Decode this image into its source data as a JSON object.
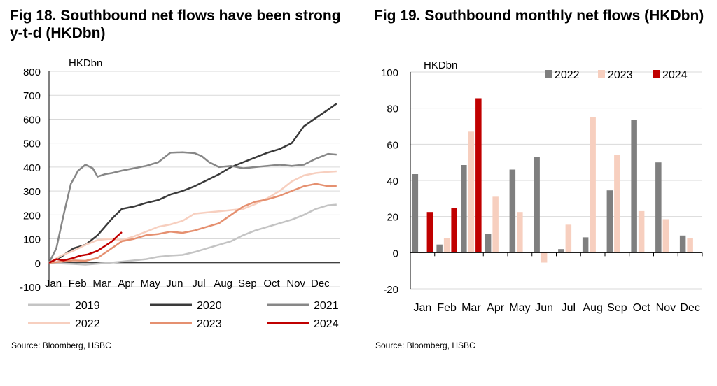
{
  "chart_data": [
    {
      "type": "line",
      "title": "Fig 18. Southbound net flows have been strong y-t-d (HKDbn)",
      "unit_label": "HKDbn",
      "x_categories": [
        "Jan",
        "Feb",
        "Mar",
        "Apr",
        "May",
        "Jun",
        "Jul",
        "Aug",
        "Sep",
        "Oct",
        "Nov",
        "Dec"
      ],
      "y_ticks": [
        800,
        700,
        600,
        500,
        400,
        300,
        200,
        100,
        0,
        -100
      ],
      "ylim": [
        -100,
        800
      ],
      "xlim": [
        0,
        12
      ],
      "grid": "horizontal",
      "legend_position": "bottom",
      "source": "Source: Bloomberg, HSBC",
      "series": [
        {
          "name": "2019",
          "color": "#c4c4c4",
          "points": [
            [
              0,
              0
            ],
            [
              0.5,
              -3
            ],
            [
              1,
              -5
            ],
            [
              1.5,
              -8
            ],
            [
              2,
              -4
            ],
            [
              2.5,
              0
            ],
            [
              3,
              5
            ],
            [
              3.5,
              10
            ],
            [
              4,
              15
            ],
            [
              4.5,
              25
            ],
            [
              5,
              30
            ],
            [
              5.5,
              33
            ],
            [
              6,
              45
            ],
            [
              6.5,
              60
            ],
            [
              7,
              75
            ],
            [
              7.5,
              90
            ],
            [
              8,
              115
            ],
            [
              8.5,
              135
            ],
            [
              9,
              150
            ],
            [
              9.5,
              165
            ],
            [
              10,
              180
            ],
            [
              10.5,
              200
            ],
            [
              11,
              225
            ],
            [
              11.5,
              240
            ],
            [
              11.85,
              243
            ]
          ]
        },
        {
          "name": "2020",
          "color": "#3a3a3a",
          "points": [
            [
              0,
              0
            ],
            [
              0.5,
              25
            ],
            [
              1,
              60
            ],
            [
              1.5,
              75
            ],
            [
              2,
              115
            ],
            [
              2.3,
              150
            ],
            [
              2.6,
              185
            ],
            [
              3,
              225
            ],
            [
              3.5,
              235
            ],
            [
              4,
              250
            ],
            [
              4.5,
              262
            ],
            [
              5,
              285
            ],
            [
              5.5,
              300
            ],
            [
              6,
              320
            ],
            [
              6.5,
              345
            ],
            [
              7,
              370
            ],
            [
              7.5,
              400
            ],
            [
              8,
              420
            ],
            [
              8.5,
              440
            ],
            [
              9,
              460
            ],
            [
              9.5,
              475
            ],
            [
              10,
              500
            ],
            [
              10.5,
              570
            ],
            [
              11,
              605
            ],
            [
              11.5,
              640
            ],
            [
              11.85,
              665
            ]
          ]
        },
        {
          "name": "2021",
          "color": "#878787",
          "points": [
            [
              0,
              0
            ],
            [
              0.3,
              60
            ],
            [
              0.6,
              200
            ],
            [
              0.9,
              330
            ],
            [
              1.2,
              385
            ],
            [
              1.5,
              410
            ],
            [
              1.8,
              395
            ],
            [
              2,
              360
            ],
            [
              2.3,
              370
            ],
            [
              2.6,
              375
            ],
            [
              3,
              385
            ],
            [
              3.5,
              395
            ],
            [
              4,
              405
            ],
            [
              4.5,
              420
            ],
            [
              5,
              460
            ],
            [
              5.5,
              462
            ],
            [
              6,
              458
            ],
            [
              6.3,
              445
            ],
            [
              6.6,
              420
            ],
            [
              7,
              400
            ],
            [
              7.5,
              405
            ],
            [
              8,
              395
            ],
            [
              8.5,
              400
            ],
            [
              9,
              405
            ],
            [
              9.5,
              410
            ],
            [
              10,
              405
            ],
            [
              10.5,
              410
            ],
            [
              11,
              435
            ],
            [
              11.5,
              455
            ],
            [
              11.85,
              452
            ]
          ]
        },
        {
          "name": "2022",
          "color": "#f7cfbf",
          "points": [
            [
              0,
              0
            ],
            [
              0.5,
              30
            ],
            [
              1,
              50
            ],
            [
              1.5,
              75
            ],
            [
              2,
              95
            ],
            [
              2.5,
              100
            ],
            [
              3,
              95
            ],
            [
              3.5,
              110
            ],
            [
              4,
              130
            ],
            [
              4.5,
              150
            ],
            [
              5,
              160
            ],
            [
              5.5,
              175
            ],
            [
              6,
              205
            ],
            [
              6.5,
              210
            ],
            [
              7,
              215
            ],
            [
              7.5,
              220
            ],
            [
              8,
              225
            ],
            [
              8.5,
              245
            ],
            [
              9,
              270
            ],
            [
              9.5,
              300
            ],
            [
              10,
              340
            ],
            [
              10.5,
              365
            ],
            [
              11,
              375
            ],
            [
              11.5,
              380
            ],
            [
              11.85,
              382
            ]
          ]
        },
        {
          "name": "2023",
          "color": "#e59070",
          "points": [
            [
              0,
              0
            ],
            [
              0.5,
              5
            ],
            [
              1,
              10
            ],
            [
              1.5,
              8
            ],
            [
              2,
              20
            ],
            [
              2.5,
              55
            ],
            [
              3,
              90
            ],
            [
              3.5,
              100
            ],
            [
              4,
              115
            ],
            [
              4.5,
              120
            ],
            [
              5,
              130
            ],
            [
              5.5,
              125
            ],
            [
              6,
              135
            ],
            [
              6.5,
              150
            ],
            [
              7,
              165
            ],
            [
              7.5,
              200
            ],
            [
              8,
              235
            ],
            [
              8.5,
              255
            ],
            [
              9,
              265
            ],
            [
              9.5,
              280
            ],
            [
              10,
              300
            ],
            [
              10.5,
              320
            ],
            [
              11,
              330
            ],
            [
              11.5,
              320
            ],
            [
              11.85,
              320
            ]
          ]
        },
        {
          "name": "2024",
          "color": "#c00000",
          "points": [
            [
              0,
              0
            ],
            [
              0.3,
              15
            ],
            [
              0.6,
              10
            ],
            [
              1,
              20
            ],
            [
              1.3,
              30
            ],
            [
              1.6,
              35
            ],
            [
              2,
              50
            ],
            [
              2.3,
              70
            ],
            [
              2.6,
              90
            ],
            [
              2.8,
              110
            ],
            [
              3,
              128
            ]
          ]
        }
      ]
    },
    {
      "type": "bar",
      "title": "Fig 19. Southbound monthly net flows (HKDbn)",
      "unit_label": "HKDbn",
      "categories": [
        "Jan",
        "Feb",
        "Mar",
        "Apr",
        "May",
        "Jun",
        "Jul",
        "Aug",
        "Sep",
        "Oct",
        "Nov",
        "Dec"
      ],
      "y_ticks": [
        100,
        80,
        60,
        40,
        20,
        0,
        -20
      ],
      "ylim": [
        -20,
        100
      ],
      "grid": "horizontal",
      "legend_position": "top-right",
      "source": "Source: Bloomberg, HSBC",
      "series": [
        {
          "name": "2022",
          "color": "#7f7f7f",
          "values": [
            43.5,
            4.5,
            48.5,
            10.5,
            46,
            53,
            2,
            8.5,
            34.5,
            73.5,
            50,
            9.5
          ]
        },
        {
          "name": "2023",
          "color": "#f7cfbf",
          "values": [
            0,
            8,
            67,
            31,
            22.5,
            -5.5,
            15.5,
            75,
            54,
            23,
            18.5,
            8
          ]
        },
        {
          "name": "2024",
          "color": "#c00000",
          "values": [
            22.5,
            24.5,
            85.5,
            null,
            null,
            null,
            null,
            null,
            null,
            null,
            null,
            null
          ]
        }
      ]
    }
  ]
}
